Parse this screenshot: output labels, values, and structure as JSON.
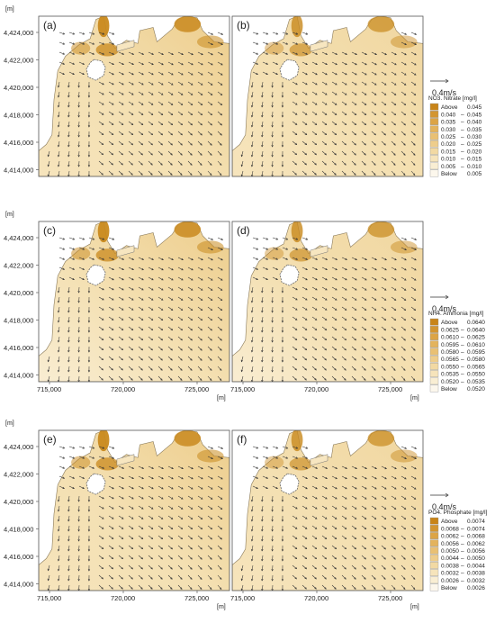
{
  "axis_unit": "[m]",
  "y_ticks": [
    "4,424,000",
    "4,422,000",
    "4,420,000",
    "4,418,000",
    "4,416,000",
    "4,414,000"
  ],
  "x_ticks": [
    "715,000",
    "720,000",
    "725,000"
  ],
  "rows": [
    {
      "panels": [
        "(a)",
        "(b)"
      ],
      "velocity_scale": "0.4m/s",
      "legend": {
        "title": "NO3. Nitrate [mg/l]",
        "entries": [
          {
            "label": "Above",
            "value": "0.045",
            "color": "#c88418"
          },
          {
            "label": "0.040",
            "value": "0.045",
            "color": "#d39530"
          },
          {
            "label": "0.035",
            "value": "0.040",
            "color": "#dca445"
          },
          {
            "label": "0.030",
            "value": "0.035",
            "color": "#e3b35c"
          },
          {
            "label": "0.025",
            "value": "0.030",
            "color": "#e9c073"
          },
          {
            "label": "0.020",
            "value": "0.025",
            "color": "#eecd8b"
          },
          {
            "label": "0.015",
            "value": "0.020",
            "color": "#f2d9a3"
          },
          {
            "label": "0.010",
            "value": "0.015",
            "color": "#f6e4bb"
          },
          {
            "label": "0.005",
            "value": "0.010",
            "color": "#f9eed3"
          },
          {
            "label": "Below",
            "value": "0.005",
            "color": "#fcf7ec"
          }
        ]
      }
    },
    {
      "panels": [
        "(c)",
        "(d)"
      ],
      "velocity_scale": "0.4m/s",
      "legend": {
        "title": "NH4. Ammonia [mg/l]",
        "entries": [
          {
            "label": "Above",
            "value": "0.0640",
            "color": "#c88418"
          },
          {
            "label": "0.0625",
            "value": "0.0640",
            "color": "#d39530"
          },
          {
            "label": "0.0610",
            "value": "0.0625",
            "color": "#dca445"
          },
          {
            "label": "0.0595",
            "value": "0.0610",
            "color": "#e3b35c"
          },
          {
            "label": "0.0580",
            "value": "0.0595",
            "color": "#e9c073"
          },
          {
            "label": "0.0565",
            "value": "0.0580",
            "color": "#eecd8b"
          },
          {
            "label": "0.0550",
            "value": "0.0565",
            "color": "#f2d9a3"
          },
          {
            "label": "0.0535",
            "value": "0.0550",
            "color": "#f6e4bb"
          },
          {
            "label": "0.0520",
            "value": "0.0535",
            "color": "#f9eed3"
          },
          {
            "label": "Below",
            "value": "0.0520",
            "color": "#fcf7ec"
          }
        ]
      }
    },
    {
      "panels": [
        "(e)",
        "(f)"
      ],
      "velocity_scale": "0.4m/s",
      "legend": {
        "title": "PO4. Phosphate [mg/l]",
        "entries": [
          {
            "label": "Above",
            "value": "0.0074",
            "color": "#c88418"
          },
          {
            "label": "0.0068",
            "value": "0.0074",
            "color": "#d39530"
          },
          {
            "label": "0.0062",
            "value": "0.0068",
            "color": "#dca445"
          },
          {
            "label": "0.0056",
            "value": "0.0062",
            "color": "#e3b35c"
          },
          {
            "label": "0.0050",
            "value": "0.0056",
            "color": "#e9c073"
          },
          {
            "label": "0.0044",
            "value": "0.0050",
            "color": "#eecd8b"
          },
          {
            "label": "0.0038",
            "value": "0.0044",
            "color": "#f2d9a3"
          },
          {
            "label": "0.0032",
            "value": "0.0038",
            "color": "#f6e4bb"
          },
          {
            "label": "0.0026",
            "value": "0.0032",
            "color": "#f9eed3"
          },
          {
            "label": "Below",
            "value": "0.0026",
            "color": "#fcf7ec"
          }
        ]
      }
    }
  ],
  "colors": {
    "water_base": "#f4e0b2",
    "land": "#ffffff",
    "coast_fill": "#f7e6c0",
    "hotspot": "#c98a1e",
    "arrow": "#333333",
    "frame": "#555555"
  }
}
